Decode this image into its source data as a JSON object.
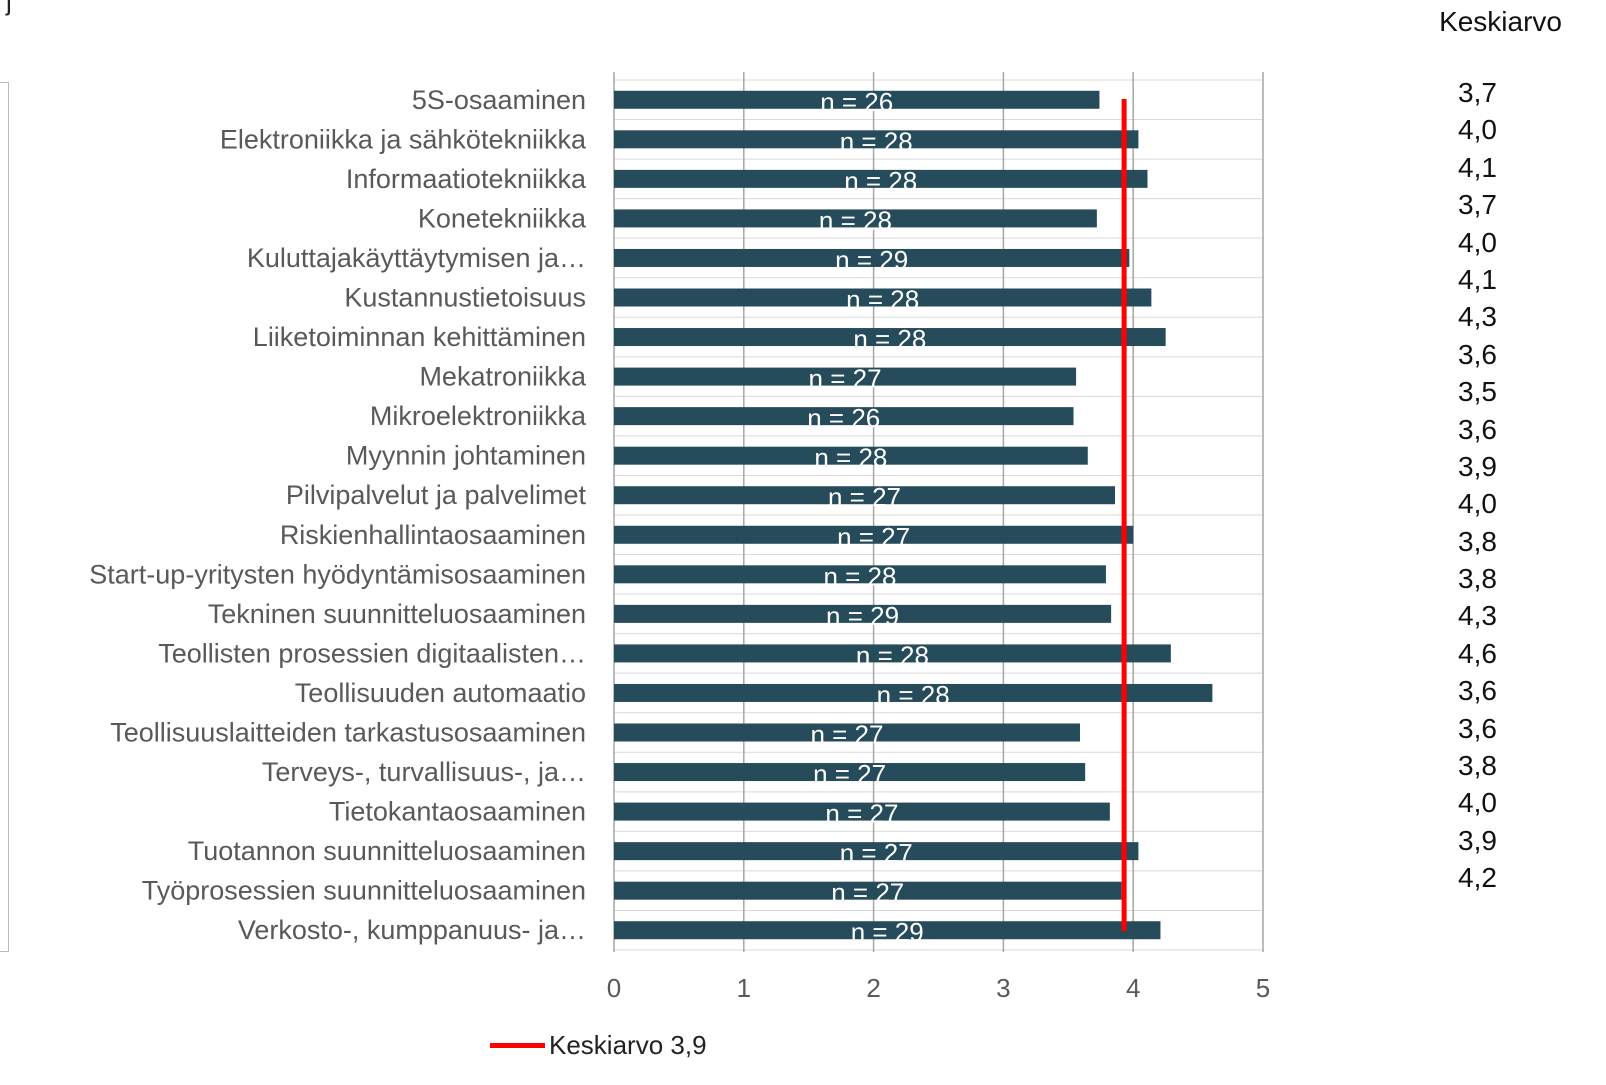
{
  "top_fragment": "j",
  "avg_column": {
    "header": "Keskiarvo",
    "values": [
      "3,7",
      "4,0",
      "4,1",
      "3,7",
      "4,0",
      "4,1",
      "4,3",
      "3,6",
      "3,5",
      "3,6",
      "3,9",
      "4,0",
      "3,8",
      "3,8",
      "4,3",
      "4,6",
      "3,6",
      "3,6",
      "3,8",
      "4,0",
      "3,9",
      "4,2"
    ]
  },
  "legend": {
    "label": "Keskiarvo 3,9",
    "color": "#ff0000"
  },
  "colors": {
    "bar": "#264b5a",
    "bar_label": "#ffffff",
    "grid": "#d9d9d9",
    "axis": "#a6a6a6",
    "category_text": "#595959"
  },
  "chart_data": {
    "type": "bar",
    "orientation": "horizontal",
    "categories": [
      "5S-osaaminen",
      "Elektroniikka ja sähkötekniikka",
      "Informaatiotekniikka",
      "Konetekniikka",
      "Kuluttajakäyttäytymisen ja…",
      "Kustannustietoisuus",
      "Liiketoiminnan kehittäminen",
      "Mekatroniikka",
      "Mikroelektroniikka",
      "Myynnin johtaminen",
      "Pilvipalvelut ja palvelimet",
      "Riskienhallintaosaaminen",
      "Start-up-yritysten hyödyntämisosaaminen",
      "Tekninen suunnitteluosaaminen",
      "Teollisten prosessien digitaalisten…",
      "Teollisuuden automaatio",
      "Teollisuuslaitteiden tarkastusosaaminen",
      "Terveys-, turvallisuus-, ja…",
      "Tietokantaosaaminen",
      "Tuotannon suunnitteluosaaminen",
      "Työprosessien suunnitteluosaaminen",
      "Verkosto-, kumppanuus- ja…"
    ],
    "values": [
      3.74,
      4.04,
      4.11,
      3.72,
      3.97,
      4.14,
      4.25,
      3.56,
      3.54,
      3.65,
      3.86,
      4.0,
      3.79,
      3.83,
      4.29,
      4.61,
      3.59,
      3.63,
      3.82,
      4.04,
      3.91,
      4.21
    ],
    "bar_labels": [
      "n = 26",
      "n = 28",
      "n = 28",
      "n = 28",
      "n = 29",
      "n = 28",
      "n = 28",
      "n = 27",
      "n = 26",
      "n = 28",
      "n = 27",
      "n = 27",
      "n = 28",
      "n = 29",
      "n = 28",
      "n = 28",
      "n = 27",
      "n = 27",
      "n = 27",
      "n = 27",
      "n = 27",
      "n = 29"
    ],
    "x_ticks": [
      "0",
      "1",
      "2",
      "3",
      "4",
      "5"
    ],
    "xlim": [
      0,
      5
    ],
    "reference_line": {
      "value": 3.93,
      "label": "Keskiarvo 3,9"
    },
    "grid": true,
    "legend_position": "bottom"
  }
}
